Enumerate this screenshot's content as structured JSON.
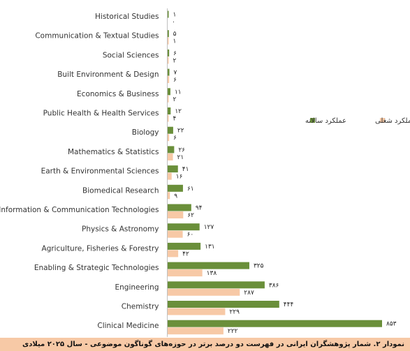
{
  "chart_data": {
    "type": "bar",
    "orientation": "horizontal",
    "categories": [
      "Historical Studies",
      "Communication & Textual Studies",
      "Social Sciences",
      "Built Environment & Design",
      "Economics & Business",
      "Public Health & Health Services",
      "Biology",
      "Mathematics & Statistics",
      "Earth & Environmental Sciences",
      "Biomedical Research",
      "Information & Communication Technologies",
      "Physics & Astronomy",
      "Agriculture, Fisheries & Forestry",
      "Enabling & Strategic Technologies",
      "Engineering",
      "Chemistry",
      "Clinical Medicine"
    ],
    "series": [
      {
        "name": "عملکرد سالانه",
        "color": "#6a8f3a",
        "values": [
          1,
          5,
          6,
          7,
          11,
          12,
          22,
          26,
          41,
          61,
          94,
          127,
          131,
          325,
          386,
          444,
          853
        ],
        "labels": [
          "۱",
          "۵",
          "۶",
          "۷",
          "۱۱",
          "۱۲",
          "۲۲",
          "۲۶",
          "۴۱",
          "۶۱",
          "۹۴",
          "۱۲۷",
          "۱۳۱",
          "۳۲۵",
          "۳۸۶",
          "۴۴۴",
          "۸۵۳"
        ]
      },
      {
        "name": "عملکرد شغلی",
        "color": "#f7c9a6",
        "values": [
          0,
          1,
          2,
          6,
          2,
          4,
          6,
          21,
          16,
          9,
          62,
          60,
          42,
          138,
          287,
          229,
          222
        ],
        "labels": [
          "۰",
          "۱",
          "۲",
          "۶",
          "۲",
          "۴",
          "۶",
          "۲۱",
          "۱۶",
          "۹",
          "۶۲",
          "۶۰",
          "۴۲",
          "۱۳۸",
          "۲۸۷",
          "۲۲۹",
          "۲۲۲"
        ]
      }
    ],
    "xlim": [
      0,
      860
    ],
    "grid": false,
    "legend_position": "right",
    "caption": "نمودار ۲. شمار پژوهشگران ایرانی در فهرست دو درصد برتر در حوزه‌های گوناگون موضوعی - سال ۲۰۲۵ میلادی"
  }
}
